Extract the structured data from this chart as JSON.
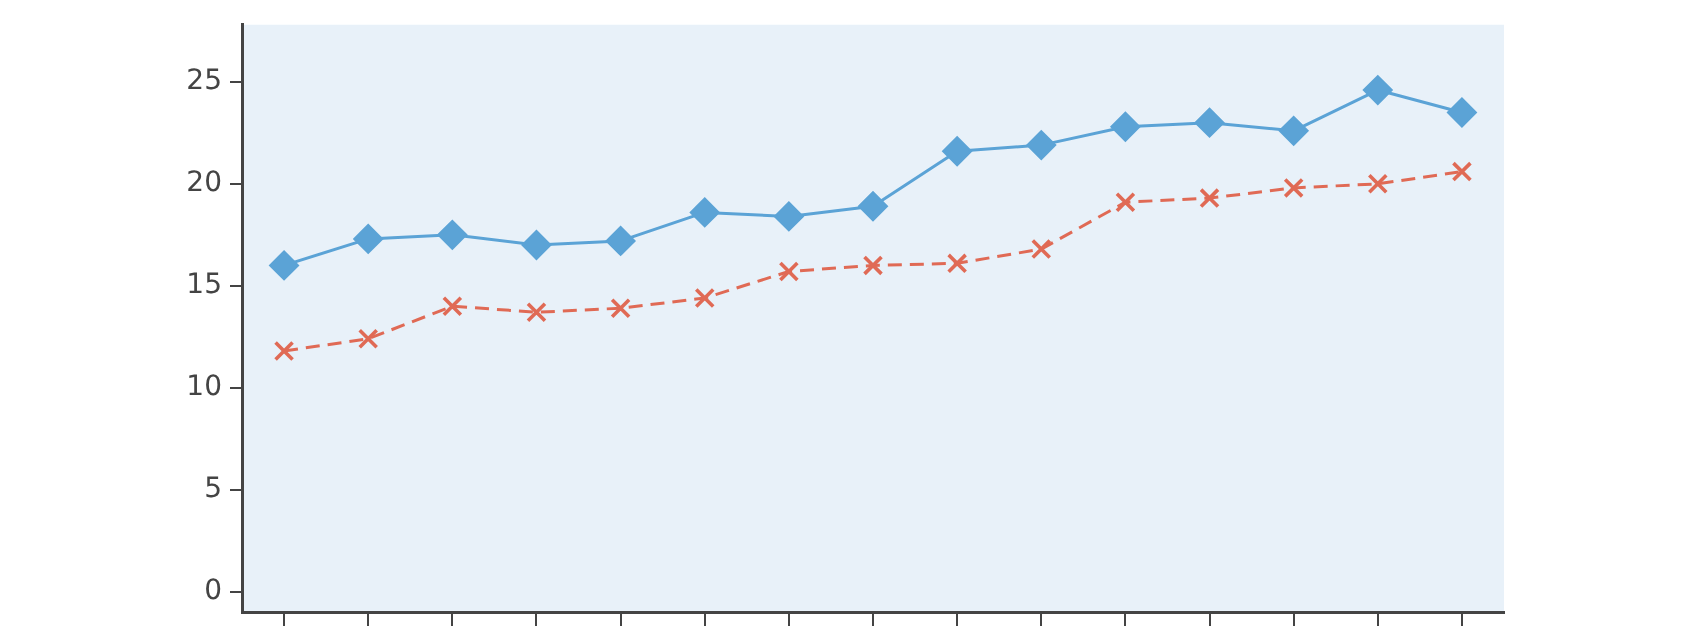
{
  "chart_data": {
    "type": "line",
    "categories": [
      null,
      null,
      null,
      null,
      null,
      null,
      null,
      null,
      null,
      null,
      null,
      null,
      null,
      null,
      null
    ],
    "series": [
      {
        "color": "#5ba3d6",
        "marker": "diamond",
        "line_style": "solid",
        "values": [
          16.0,
          17.3,
          17.5,
          17.0,
          17.2,
          18.6,
          18.4,
          18.9,
          21.6,
          21.9,
          22.8,
          23.0,
          22.6,
          24.6,
          23.5
        ]
      },
      {
        "color": "#e06a55",
        "marker": "cross",
        "line_style": "dashed",
        "values": [
          11.8,
          12.4,
          14.0,
          13.7,
          13.9,
          14.4,
          15.7,
          16.0,
          16.1,
          16.8,
          19.1,
          19.3,
          19.8,
          20.0,
          20.6
        ]
      }
    ],
    "ylim": [
      -1,
      27.8
    ],
    "yticks": [
      0,
      5,
      10,
      15,
      20,
      25
    ],
    "grid": false,
    "legend": false
  }
}
